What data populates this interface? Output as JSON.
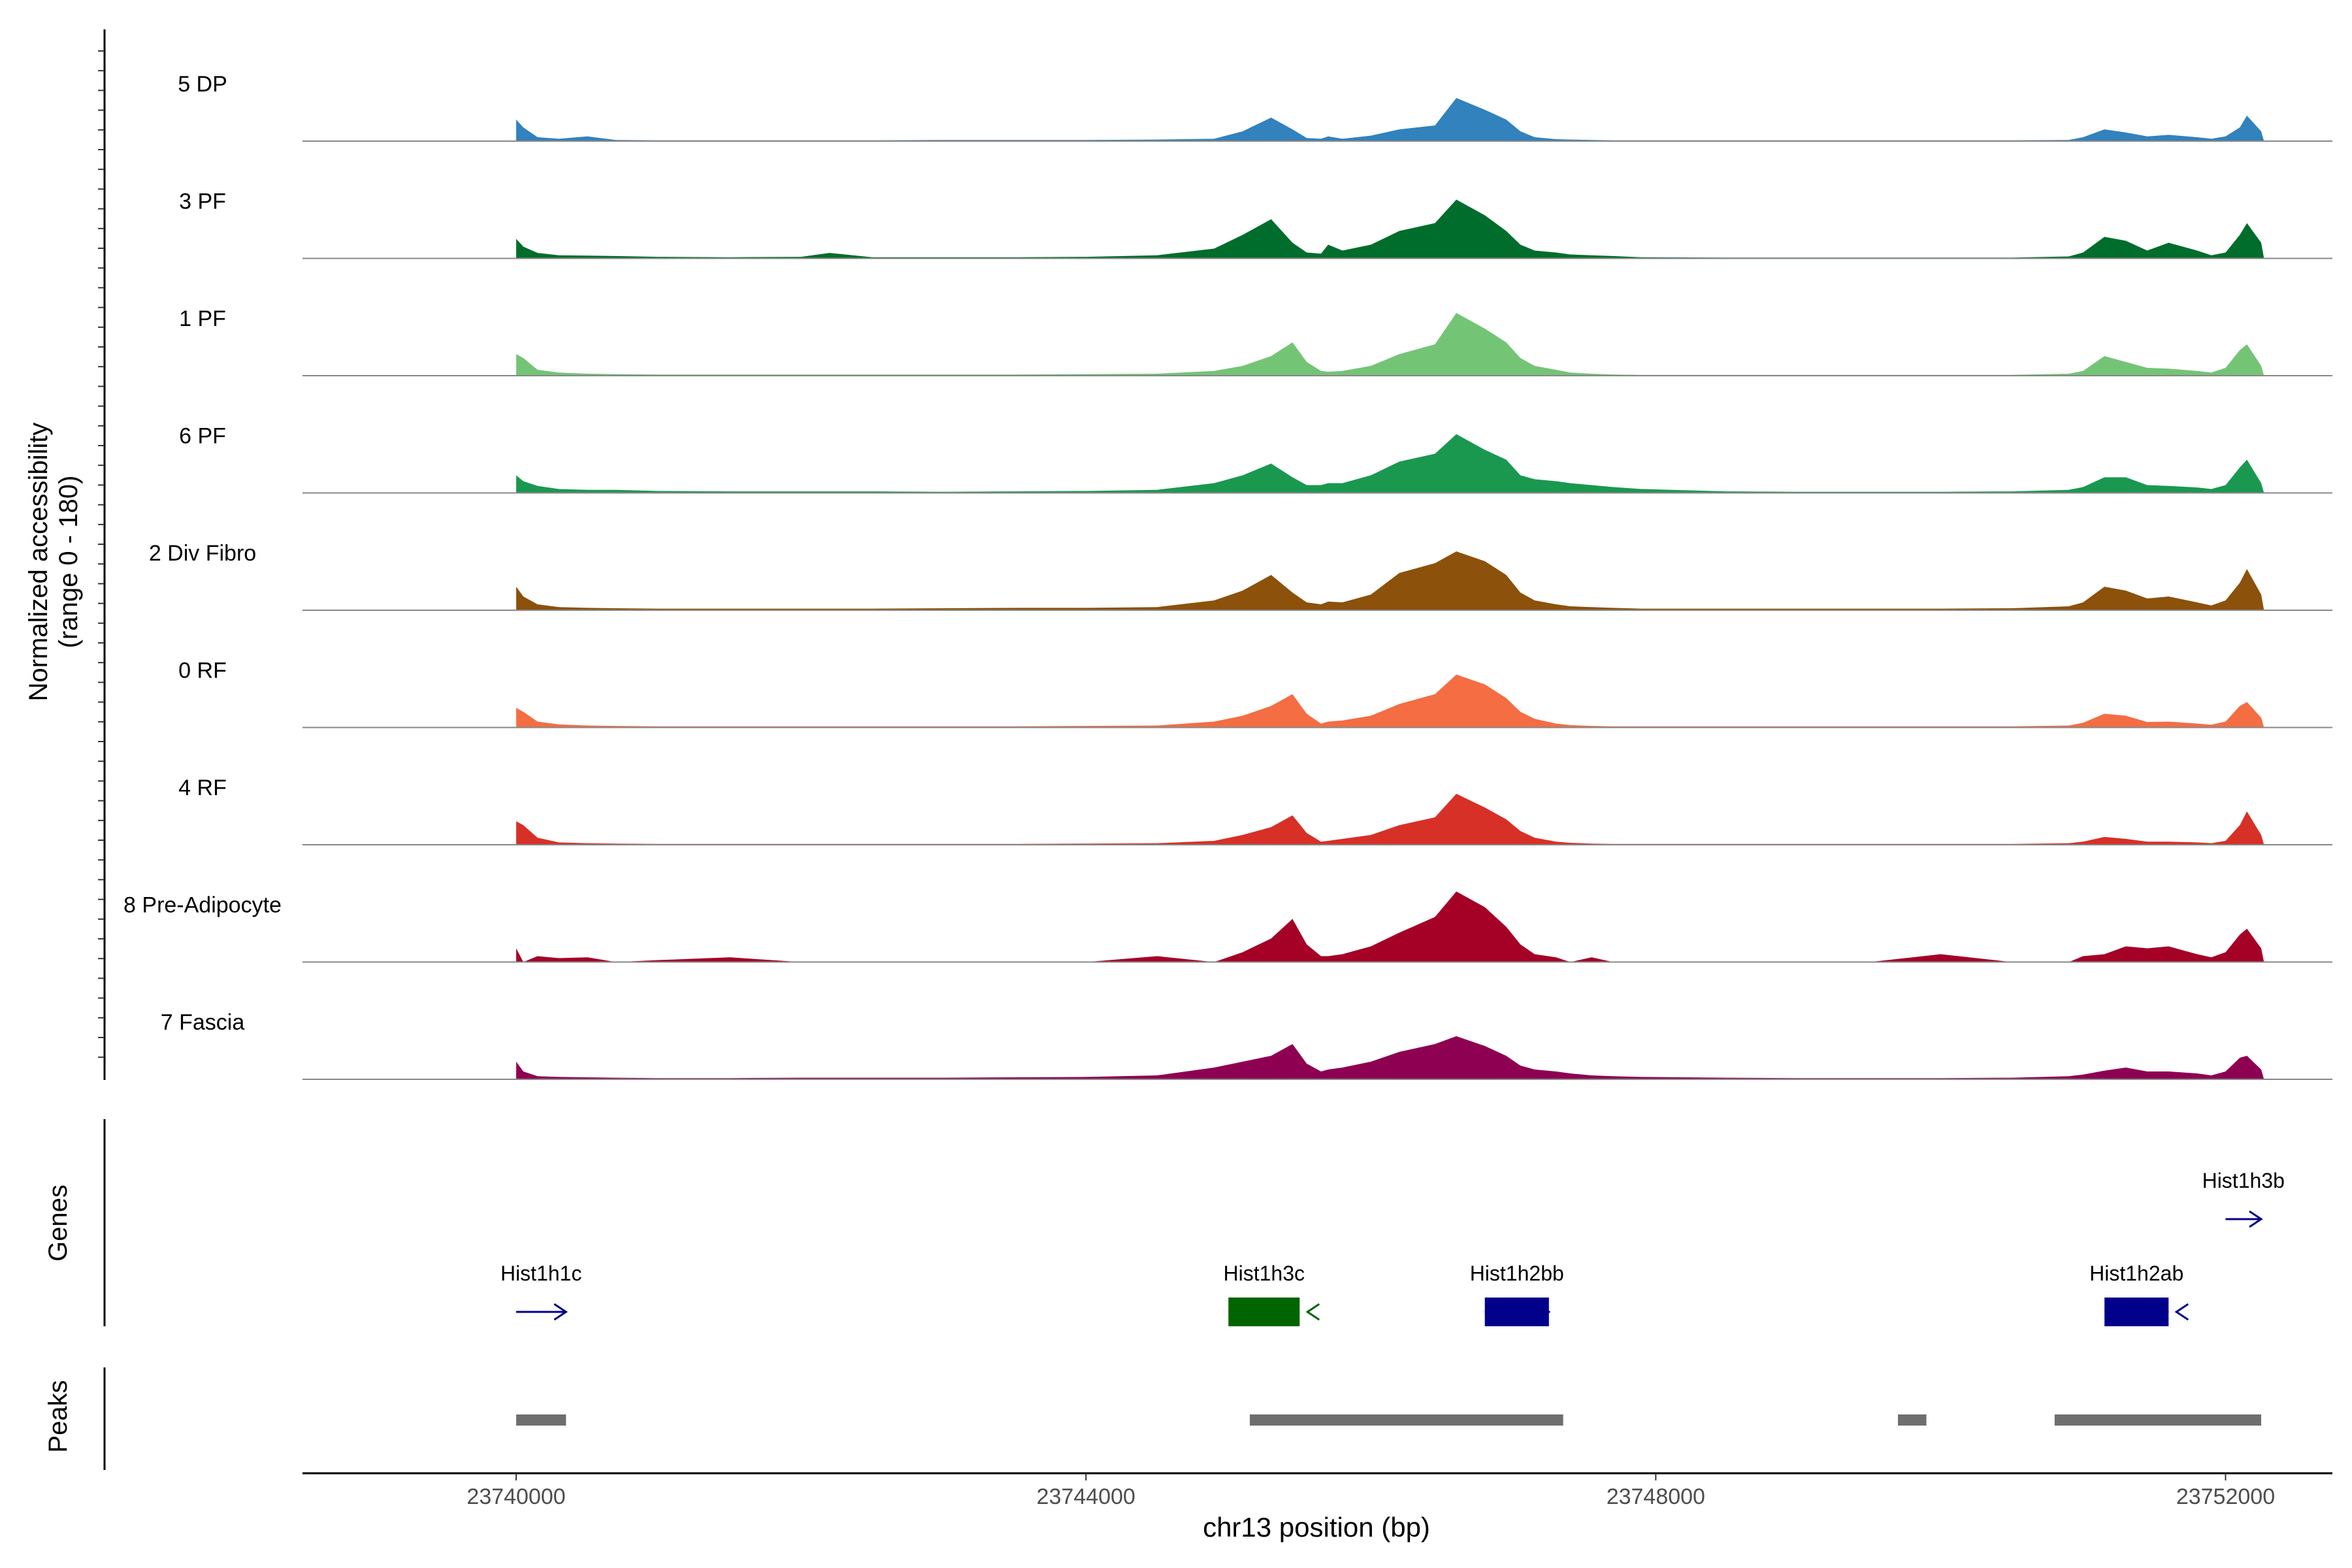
{
  "chart_data": {
    "type": "area",
    "title": "",
    "ylabel_line1": "Normalized accessibility",
    "ylabel_line2": "(range 0 - 180)",
    "genes_label": "Genes",
    "peaks_label": "Peaks",
    "xlabel": "chr13 position (bp)",
    "x_range": [
      23738500,
      23752750
    ],
    "y_range": [
      0,
      180
    ],
    "x_ticks": [
      {
        "value": 23740000,
        "label": "23740000"
      },
      {
        "value": 23744000,
        "label": "23744000"
      },
      {
        "value": 23748000,
        "label": "23748000"
      },
      {
        "value": 23752000,
        "label": "23752000"
      }
    ],
    "positions": [
      23740000,
      23740050,
      23740150,
      23740300,
      23740500,
      23740700,
      23741000,
      23741500,
      23742000,
      23742200,
      23742500,
      23743000,
      23743500,
      23744000,
      23744500,
      23744900,
      23745100,
      23745300,
      23745450,
      23745550,
      23745650,
      23745700,
      23745800,
      23746000,
      23746200,
      23746450,
      23746600,
      23746800,
      23746950,
      23747050,
      23747150,
      23747300,
      23747400,
      23747550,
      23747700,
      23747900,
      23748500,
      23749000,
      23749500,
      23750000,
      23750500,
      23750900,
      23751000,
      23751150,
      23751300,
      23751450,
      23751600,
      23751800,
      23751900,
      23752000,
      23752100,
      23752150,
      23752250,
      23752270
    ],
    "series": [
      {
        "name": "5 DP",
        "color": "#3182bd",
        "values": [
          55,
          35,
          10,
          6,
          12,
          3,
          2,
          2,
          2,
          2,
          2,
          3,
          3,
          3,
          4,
          6,
          25,
          60,
          30,
          8,
          6,
          12,
          6,
          14,
          30,
          40,
          110,
          80,
          55,
          25,
          10,
          5,
          4,
          3,
          2,
          2,
          2,
          2,
          2,
          2,
          2,
          3,
          10,
          30,
          22,
          12,
          16,
          10,
          6,
          12,
          35,
          65,
          25,
          0
        ]
      },
      {
        "name": "3 PF",
        "color": "#006d2c",
        "values": [
          50,
          30,
          14,
          8,
          7,
          6,
          4,
          3,
          4,
          14,
          3,
          3,
          3,
          4,
          8,
          25,
          60,
          100,
          40,
          15,
          12,
          35,
          20,
          35,
          70,
          90,
          150,
          110,
          70,
          35,
          20,
          15,
          10,
          8,
          6,
          3,
          2,
          2,
          2,
          2,
          2,
          5,
          15,
          55,
          45,
          20,
          40,
          20,
          8,
          15,
          60,
          90,
          40,
          0
        ]
      },
      {
        "name": "1 PF",
        "color": "#74c476",
        "values": [
          55,
          45,
          15,
          8,
          5,
          4,
          3,
          3,
          3,
          3,
          3,
          3,
          3,
          4,
          5,
          12,
          25,
          50,
          85,
          35,
          12,
          10,
          12,
          25,
          55,
          80,
          160,
          120,
          85,
          45,
          25,
          15,
          8,
          5,
          3,
          2,
          2,
          2,
          2,
          2,
          2,
          5,
          12,
          50,
          35,
          20,
          18,
          12,
          8,
          20,
          65,
          80,
          25,
          0
        ]
      },
      {
        "name": "6 PF",
        "color": "#1a9850",
        "values": [
          45,
          30,
          18,
          10,
          8,
          8,
          5,
          4,
          4,
          4,
          4,
          3,
          4,
          5,
          8,
          25,
          45,
          75,
          40,
          20,
          20,
          25,
          25,
          45,
          80,
          100,
          150,
          110,
          85,
          45,
          35,
          30,
          25,
          20,
          15,
          10,
          4,
          3,
          3,
          3,
          4,
          8,
          15,
          40,
          40,
          20,
          18,
          14,
          10,
          20,
          65,
          85,
          25,
          0
        ]
      },
      {
        "name": "2 Div Fibro",
        "color": "#8c510a",
        "values": [
          60,
          35,
          15,
          8,
          6,
          5,
          4,
          4,
          4,
          4,
          4,
          5,
          6,
          6,
          8,
          25,
          50,
          90,
          45,
          20,
          15,
          22,
          20,
          40,
          95,
          120,
          150,
          125,
          90,
          45,
          25,
          15,
          10,
          8,
          6,
          4,
          4,
          4,
          4,
          4,
          5,
          10,
          20,
          60,
          50,
          30,
          35,
          20,
          12,
          25,
          70,
          105,
          40,
          0
        ]
      },
      {
        "name": "0 RF",
        "color": "#f46d43",
        "values": [
          50,
          40,
          15,
          8,
          5,
          4,
          3,
          3,
          3,
          3,
          3,
          3,
          3,
          4,
          5,
          15,
          30,
          55,
          85,
          35,
          10,
          15,
          18,
          30,
          60,
          85,
          135,
          110,
          75,
          40,
          22,
          10,
          6,
          4,
          3,
          3,
          3,
          3,
          3,
          3,
          3,
          5,
          12,
          35,
          30,
          14,
          15,
          10,
          7,
          15,
          55,
          65,
          25,
          0
        ]
      },
      {
        "name": "4 RF",
        "color": "#d73027",
        "values": [
          60,
          50,
          18,
          6,
          4,
          3,
          2,
          2,
          2,
          2,
          2,
          2,
          2,
          3,
          4,
          10,
          25,
          45,
          75,
          30,
          8,
          10,
          15,
          25,
          50,
          70,
          130,
          95,
          65,
          35,
          18,
          8,
          5,
          3,
          2,
          2,
          2,
          2,
          2,
          2,
          2,
          4,
          8,
          20,
          15,
          8,
          8,
          6,
          4,
          10,
          50,
          85,
          25,
          0
        ]
      },
      {
        "name": "8 Pre-Adipocyte",
        "color": "#a50026",
        "values": [
          35,
          0,
          15,
          10,
          12,
          0,
          5,
          12,
          0,
          0,
          0,
          0,
          0,
          0,
          15,
          0,
          25,
          60,
          110,
          45,
          15,
          15,
          20,
          40,
          75,
          115,
          180,
          140,
          90,
          45,
          20,
          12,
          0,
          12,
          0,
          0,
          0,
          0,
          0,
          20,
          0,
          0,
          15,
          20,
          40,
          35,
          40,
          20,
          12,
          25,
          70,
          85,
          35,
          0
        ]
      },
      {
        "name": "7 Fascia",
        "color": "#8e0152",
        "values": [
          45,
          20,
          8,
          6,
          5,
          4,
          3,
          3,
          4,
          4,
          4,
          4,
          5,
          6,
          10,
          30,
          45,
          60,
          90,
          40,
          20,
          25,
          30,
          45,
          70,
          90,
          110,
          85,
          60,
          35,
          25,
          20,
          15,
          10,
          8,
          6,
          4,
          3,
          3,
          3,
          4,
          8,
          12,
          22,
          30,
          20,
          20,
          15,
          10,
          20,
          55,
          60,
          25,
          0
        ]
      }
    ],
    "genes": [
      {
        "name": "Hist1h1c",
        "start": 23740000,
        "end": 23740350,
        "strand": "+",
        "color": "#00008b",
        "row": 2,
        "exon": false
      },
      {
        "name": "Hist1h3c",
        "start": 23745000,
        "end": 23745500,
        "strand": "-",
        "color": "#006400",
        "row": 2,
        "exon": true
      },
      {
        "name": "Hist1h2bb",
        "start": 23746800,
        "end": 23747250,
        "strand": "+",
        "color": "#00008b",
        "row": 2,
        "exon": true
      },
      {
        "name": "Hist1h2ab",
        "start": 23751150,
        "end": 23751600,
        "strand": "-",
        "color": "#00008b",
        "row": 2,
        "exon": true
      },
      {
        "name": "Hist1h3b",
        "start": 23752000,
        "end": 23752250,
        "strand": "+",
        "color": "#00008b",
        "row": 1,
        "exon": false
      }
    ],
    "peaks": [
      {
        "start": 23740000,
        "end": 23740350
      },
      {
        "start": 23745150,
        "end": 23747350
      },
      {
        "start": 23749700,
        "end": 23749900
      },
      {
        "start": 23750800,
        "end": 23752250
      }
    ]
  }
}
